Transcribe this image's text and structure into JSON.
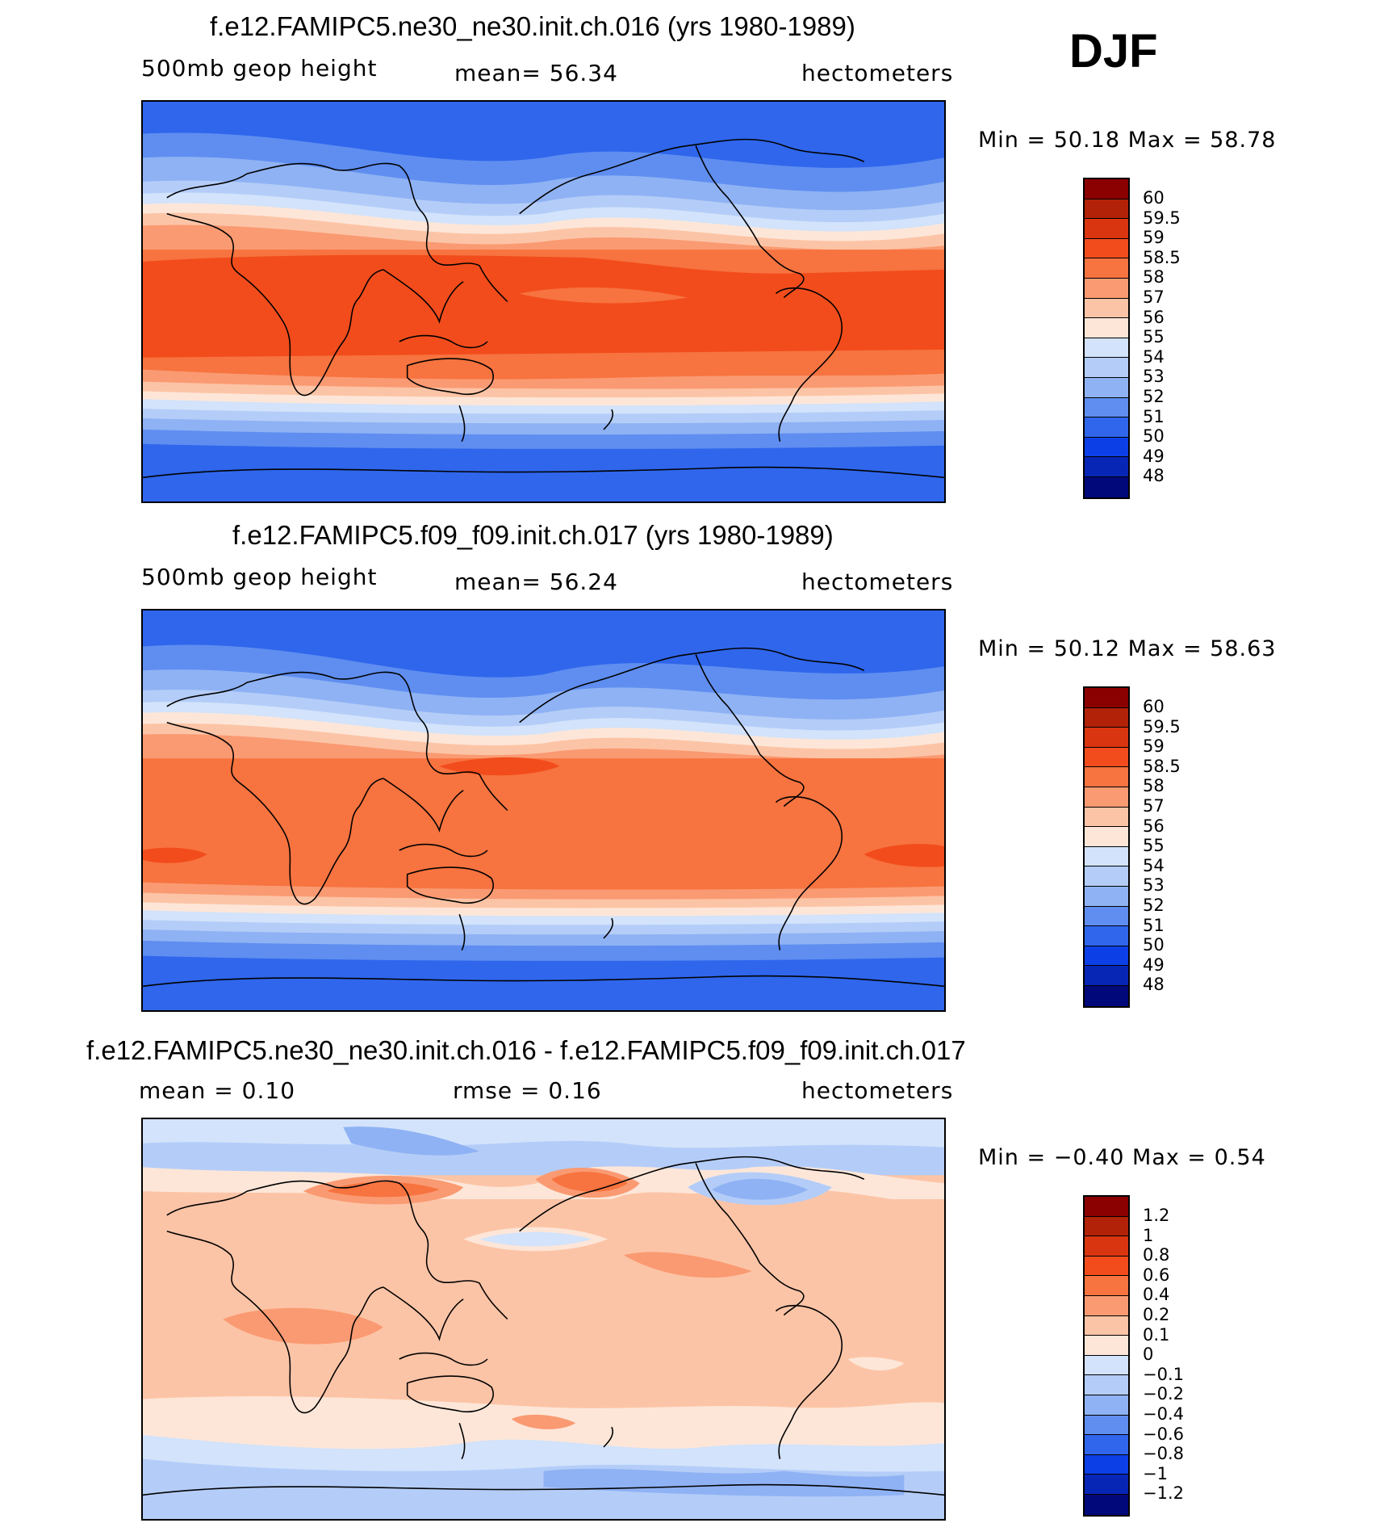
{
  "season": "DJF",
  "panels": [
    {
      "title": "f.e12.FAMIPC5.ne30_ne30.init.ch.016 (yrs 1980-1989)",
      "left_label": "500mb  geop  height",
      "center_label": "mean=   56.34",
      "units": "hectometers",
      "minmax": "Min  =   50.18  Max  =   58.78",
      "colorbar": {
        "labels": [
          "60",
          "59.5",
          "59",
          "58.5",
          "58",
          "57",
          "56",
          "55",
          "54",
          "53",
          "52",
          "51",
          "50",
          "49",
          "48"
        ],
        "colors": [
          "#8b0000",
          "#b22208",
          "#d93510",
          "#f24c1c",
          "#f7733f",
          "#fa9a72",
          "#fcc4a6",
          "#fde6d8",
          "#d2e3fb",
          "#b4cdf8",
          "#8fb2f4",
          "#5f8ef0",
          "#2f66ec",
          "#0d3fe6",
          "#0726b6",
          "#01087a"
        ]
      }
    },
    {
      "title": "f.e12.FAMIPC5.f09_f09.init.ch.017 (yrs 1980-1989)",
      "left_label": "500mb  geop  height",
      "center_label": "mean=   56.24",
      "units": "hectometers",
      "minmax": "Min  =   50.12  Max  =   58.63",
      "colorbar": {
        "labels": [
          "60",
          "59.5",
          "59",
          "58.5",
          "58",
          "57",
          "56",
          "55",
          "54",
          "53",
          "52",
          "51",
          "50",
          "49",
          "48"
        ],
        "colors": [
          "#8b0000",
          "#b22208",
          "#d93510",
          "#f24c1c",
          "#f7733f",
          "#fa9a72",
          "#fcc4a6",
          "#fde6d8",
          "#d2e3fb",
          "#b4cdf8",
          "#8fb2f4",
          "#5f8ef0",
          "#2f66ec",
          "#0d3fe6",
          "#0726b6",
          "#01087a"
        ]
      }
    },
    {
      "title": "f.e12.FAMIPC5.ne30_ne30.init.ch.016 - f.e12.FAMIPC5.f09_f09.init.ch.017",
      "left_label": "mean  =     0.10",
      "center_label": "rmse  =     0.16",
      "units": "hectometers",
      "minmax": "Min  =   −0.40  Max  =     0.54",
      "colorbar": {
        "labels": [
          "1.2",
          "1",
          "0.8",
          "0.6",
          "0.4",
          "0.2",
          "0.1",
          "0",
          "−0.1",
          "−0.2",
          "−0.4",
          "−0.6",
          "−0.8",
          "−1",
          "−1.2"
        ],
        "colors": [
          "#8b0000",
          "#b22208",
          "#d93510",
          "#f24c1c",
          "#f7733f",
          "#fa9a72",
          "#fcc4a6",
          "#fde6d8",
          "#d2e3fb",
          "#b4cdf8",
          "#8fb2f4",
          "#5f8ef0",
          "#2f66ec",
          "#0d3fe6",
          "#0726b6",
          "#01087a"
        ]
      }
    }
  ]
}
